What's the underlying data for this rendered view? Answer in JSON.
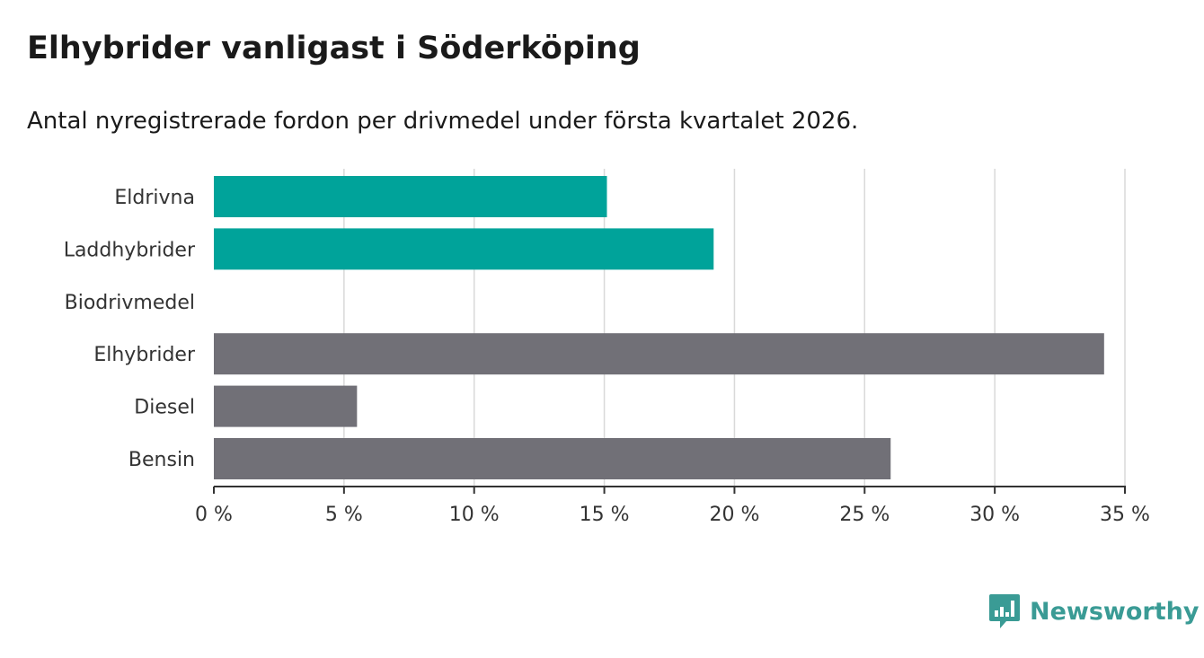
{
  "chart_data": {
    "type": "bar",
    "orientation": "horizontal",
    "title": "Elhybrider vanligast i Söderköping",
    "subtitle": "Antal nyregistrerade fordon per drivmedel under första kvartalet 2026.",
    "categories": [
      "Eldrivna",
      "Laddhybrider",
      "Biodrivmedel",
      "Elhybrider",
      "Diesel",
      "Bensin"
    ],
    "values": [
      15.1,
      19.2,
      0,
      34.2,
      5.5,
      26.0
    ],
    "bar_colors": [
      "#00a39a",
      "#00a39a",
      "#00a39a",
      "#717077",
      "#717077",
      "#717077"
    ],
    "unit": "%",
    "xlim": [
      0,
      35
    ],
    "xticks": [
      0,
      5,
      10,
      15,
      20,
      25,
      30,
      35
    ],
    "xtick_labels": [
      "0 %",
      "5 %",
      "10 %",
      "15 %",
      "20 %",
      "25 %",
      "30 %",
      "35 %"
    ],
    "xlabel": "",
    "ylabel": "",
    "grid": true
  },
  "brand": {
    "name": "Newsworthy",
    "icon": "bar-chart-icon",
    "color": "#3a9b95"
  }
}
